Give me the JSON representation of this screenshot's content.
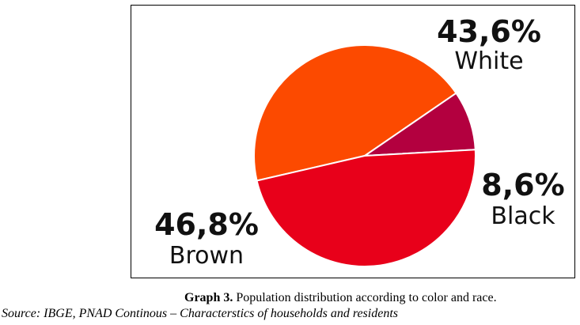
{
  "chart_data": {
    "type": "pie",
    "slices": [
      {
        "label": "White",
        "value": 43.6,
        "display": "43,6%",
        "color": "#fc4a00"
      },
      {
        "label": "Black",
        "value": 8.6,
        "display": "8,6%",
        "color": "#b3003f"
      },
      {
        "label": "Brown",
        "value": 46.8,
        "display": "46,8%",
        "color": "#e8001a"
      }
    ]
  },
  "caption": {
    "label": "Graph 3.",
    "text": "Population distribution according to color and race.",
    "source": "Source: IBGE, PNAD Continous – Characterstics of households and residents"
  }
}
